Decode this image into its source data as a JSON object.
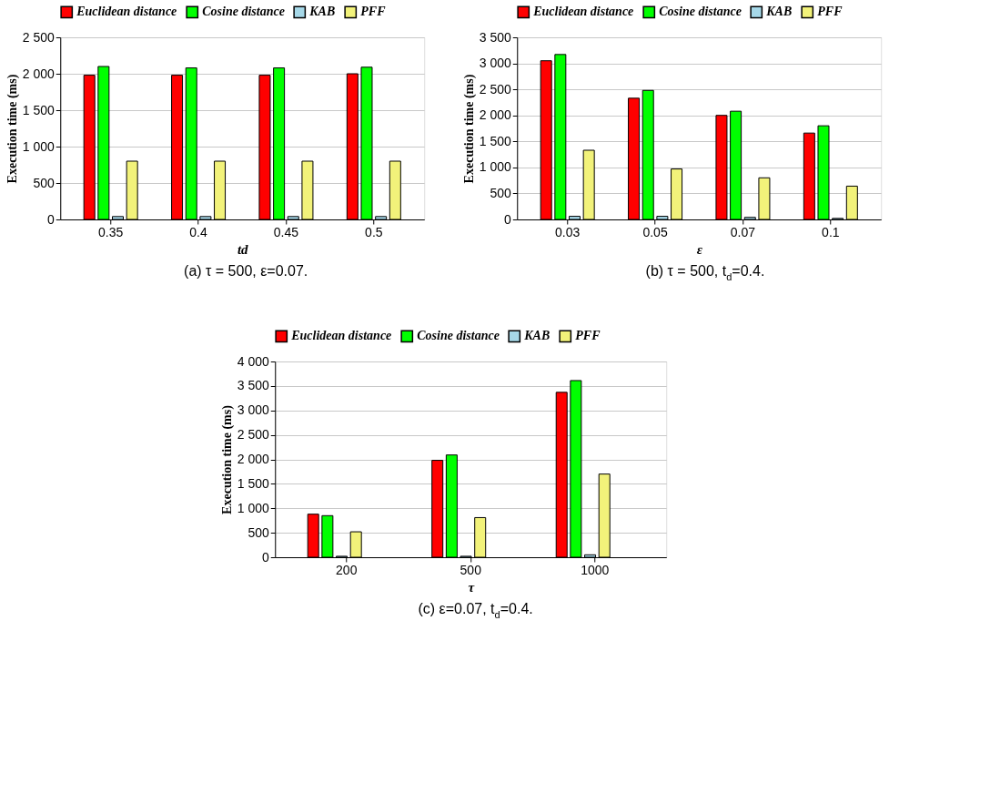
{
  "chart_data": [
    {
      "type": "bar",
      "categories": [
        "0.35",
        "0.4",
        "0.45",
        "0.5"
      ],
      "xlabel": "td",
      "ylabel": "Execution time (ms)",
      "series": [
        {
          "name": "Euclidean distance",
          "color": "#ff0000",
          "values": [
            1980,
            1980,
            1980,
            2000
          ]
        },
        {
          "name": "Cosine distance",
          "color": "#00ff00",
          "values": [
            2100,
            2080,
            2080,
            2090
          ]
        },
        {
          "name": "KAB",
          "color": "#a6d8e8",
          "values": [
            40,
            40,
            40,
            40
          ]
        },
        {
          "name": "PFF",
          "color": "#f2f27a",
          "values": [
            800,
            800,
            800,
            800
          ]
        }
      ],
      "ylim": [
        0,
        2500
      ],
      "yticks": [
        0,
        500,
        {
          "value": 1000,
          "label": "1 000"
        },
        {
          "value": 1500,
          "label": "1 500"
        },
        {
          "value": 2000,
          "label": "2 000"
        },
        {
          "value": 2500,
          "label": "2 500"
        }
      ],
      "grid": "y",
      "legend": "top",
      "annotations": [
        "(a) τ = 500, ε=0.07."
      ]
    },
    {
      "type": "bar",
      "categories": [
        "0.03",
        "0.05",
        "0.07",
        "0.1"
      ],
      "xlabel": "ε",
      "ylabel": "Execution time (ms)",
      "series": [
        {
          "name": "Euclidean distance",
          "color": "#ff0000",
          "values": [
            3050,
            2330,
            2000,
            1660
          ]
        },
        {
          "name": "Cosine distance",
          "color": "#00ff00",
          "values": [
            3170,
            2480,
            2080,
            1800
          ]
        },
        {
          "name": "KAB",
          "color": "#a6d8e8",
          "values": [
            60,
            60,
            40,
            20
          ]
        },
        {
          "name": "PFF",
          "color": "#f2f27a",
          "values": [
            1330,
            970,
            800,
            640
          ]
        }
      ],
      "ylim": [
        0,
        3500
      ],
      "yticks": [
        0,
        500,
        {
          "value": 1000,
          "label": "1 000"
        },
        {
          "value": 1500,
          "label": "1 500"
        },
        {
          "value": 2000,
          "label": "2 000"
        },
        {
          "value": 2500,
          "label": "2 500"
        },
        {
          "value": 3000,
          "label": "3 000"
        },
        {
          "value": 3500,
          "label": "3 500"
        }
      ],
      "grid": "y",
      "legend": "top",
      "annotations": [
        "(b) τ = 500, t$_{d}$=0.4."
      ]
    },
    {
      "type": "bar",
      "categories": [
        "200",
        "500",
        "1000"
      ],
      "xlabel": "τ",
      "ylabel": "Execution time (ms)",
      "series": [
        {
          "name": "Euclidean distance",
          "color": "#ff0000",
          "values": [
            880,
            1980,
            3370
          ]
        },
        {
          "name": "Cosine distance",
          "color": "#00ff00",
          "values": [
            850,
            2090,
            3610
          ]
        },
        {
          "name": "KAB",
          "color": "#a6d8e8",
          "values": [
            20,
            20,
            50
          ]
        },
        {
          "name": "PFF",
          "color": "#f2f27a",
          "values": [
            520,
            810,
            1700
          ]
        }
      ],
      "ylim": [
        0,
        4000
      ],
      "yticks": [
        0,
        500,
        {
          "value": 1000,
          "label": "1 000"
        },
        {
          "value": 1500,
          "label": "1 500"
        },
        {
          "value": 2000,
          "label": "2 000"
        },
        {
          "value": 2500,
          "label": "2 500"
        },
        {
          "value": 3000,
          "label": "3 000"
        },
        {
          "value": 3500,
          "label": "3 500"
        },
        {
          "value": 4000,
          "label": "4 000"
        }
      ],
      "grid": "y",
      "legend": "top",
      "annotations": [
        "(c) ε=0.07, t$_{d}$=0.4."
      ]
    }
  ]
}
